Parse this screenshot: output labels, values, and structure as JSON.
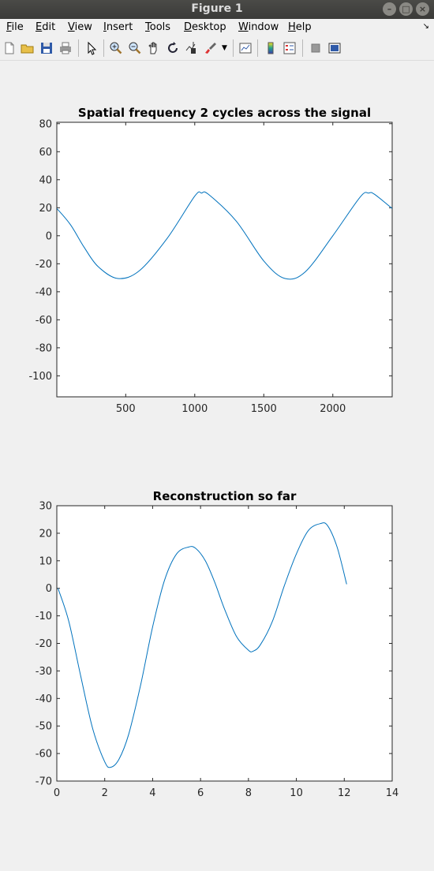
{
  "window": {
    "title": "Figure 1"
  },
  "menu": {
    "file": {
      "u": "F",
      "rest": "ile"
    },
    "edit": {
      "u": "E",
      "rest": "dit"
    },
    "view": {
      "u": "V",
      "rest": "iew"
    },
    "insert": {
      "u": "I",
      "rest": "nsert"
    },
    "tools": {
      "u": "T",
      "rest": "ools"
    },
    "desktop": {
      "u": "D",
      "rest": "esktop"
    },
    "window": {
      "u": "W",
      "rest": "indow"
    },
    "help": {
      "u": "H",
      "rest": "elp"
    }
  },
  "toolbar_icons": [
    "new-figure-icon",
    "open-file-icon",
    "save-icon",
    "print-icon",
    "pointer-icon",
    "zoom-in-icon",
    "zoom-out-icon",
    "pan-hand-icon",
    "rotate-3d-icon",
    "data-cursor-icon",
    "brush-icon",
    "link-plot-icon",
    "colorbar-icon",
    "legend-icon",
    "hide-plot-tools-icon",
    "show-plot-tools-icon"
  ],
  "line_color": "#0072bd",
  "chart_data": [
    {
      "type": "line",
      "title": "Spatial frequency 2 cycles across the signal",
      "xlabel": "",
      "ylabel": "",
      "xlim": [
        1,
        2430
      ],
      "ylim": [
        -115,
        81
      ],
      "xticks": [
        500,
        1000,
        1500,
        2000
      ],
      "yticks": [
        -100,
        -80,
        -60,
        -40,
        -20,
        0,
        20,
        40,
        60,
        80
      ],
      "series": [
        {
          "x": [
            1,
            100,
            200,
            300,
            443,
            600,
            800,
            1000,
            1050,
            1100,
            1300,
            1500,
            1654,
            1800,
            2000,
            2200,
            2260,
            2300,
            2430
          ],
          "y": [
            19.5,
            7.9,
            -8.4,
            -22,
            -30.5,
            -24.9,
            -1.9,
            28.3,
            30.5,
            29.5,
            10.5,
            -18,
            -30.5,
            -25.8,
            0,
            27.9,
            30.5,
            29.7,
            19.5
          ]
        }
      ]
    },
    {
      "type": "line",
      "title": "Reconstruction so far",
      "xlabel": "",
      "ylabel": "",
      "xlim": [
        0,
        14
      ],
      "ylim": [
        -70,
        30
      ],
      "xticks": [
        0,
        2,
        4,
        6,
        8,
        10,
        12,
        14
      ],
      "yticks": [
        -70,
        -60,
        -50,
        -40,
        -30,
        -20,
        -10,
        0,
        10,
        20,
        30
      ],
      "series": [
        {
          "x": [
            0.05,
            0.5,
            1.0,
            1.5,
            2.0,
            2.25,
            2.6,
            3.0,
            3.5,
            4.0,
            4.5,
            5.0,
            5.5,
            5.8,
            6.2,
            6.6,
            7.0,
            7.5,
            8.0,
            8.2,
            8.5,
            9.0,
            9.5,
            10.0,
            10.5,
            11.0,
            11.3,
            11.7,
            12.1
          ],
          "y": [
            0,
            -12,
            -32,
            -51,
            -63,
            -65,
            -62,
            -53,
            -35,
            -14,
            3,
            12.5,
            15,
            14.5,
            10,
            2,
            -7.5,
            -17.5,
            -22.5,
            -22.8,
            -20.5,
            -12,
            1,
            12.5,
            21,
            23.5,
            22.8,
            15,
            1.5
          ]
        }
      ]
    }
  ]
}
